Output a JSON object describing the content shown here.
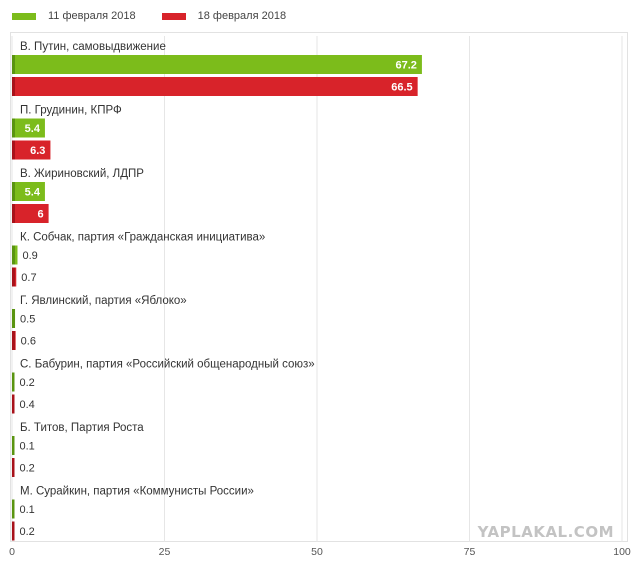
{
  "legend": {
    "series_a": "11 февраля 2018",
    "series_b": "18 февраля 2018"
  },
  "colors": {
    "series_a": "#7cbc1b",
    "series_b": "#d8232a",
    "series_a_edge": "#5a9410",
    "series_b_edge": "#a8121a",
    "grid": "#e6e6e6",
    "text": "#333333"
  },
  "watermark": "YAPLAKAL.COM",
  "chart_data": {
    "type": "bar",
    "orientation": "horizontal",
    "categories": [
      "В. Путин, самовыдвижение",
      "П. Грудинин, КПРФ",
      "В. Жириновский, ЛДПР",
      "К. Собчак, партия «Гражданская инициатива»",
      "Г. Явлинский, партия «Яблоко»",
      "С. Бабурин, партия «Российский общенародный союз»",
      "Б. Титов, Партия Роста",
      "М. Сурайкин, партия «Коммунисты России»"
    ],
    "series": [
      {
        "name": "11 февраля 2018",
        "values": [
          67.2,
          5.4,
          5.4,
          0.9,
          0.5,
          0.2,
          0.1,
          0.1
        ]
      },
      {
        "name": "18 февраля 2018",
        "values": [
          66.5,
          6.3,
          6,
          0.7,
          0.6,
          0.4,
          0.2,
          0.2
        ]
      }
    ],
    "value_labels": [
      [
        "67.2",
        "5.4",
        "5.4",
        "0.9",
        "0.5",
        "0.2",
        "0.1",
        "0.1"
      ],
      [
        "66.5",
        "6.3",
        "6",
        "0.7",
        "0.6",
        "0.4",
        "0.2",
        "0.2"
      ]
    ],
    "xlim": [
      0,
      100
    ],
    "x_ticks": [
      0,
      25,
      50,
      75,
      100
    ],
    "x_tick_labels": [
      "0",
      "25",
      "50",
      "75",
      "100"
    ],
    "grid": true,
    "legend_position": "top-left"
  }
}
